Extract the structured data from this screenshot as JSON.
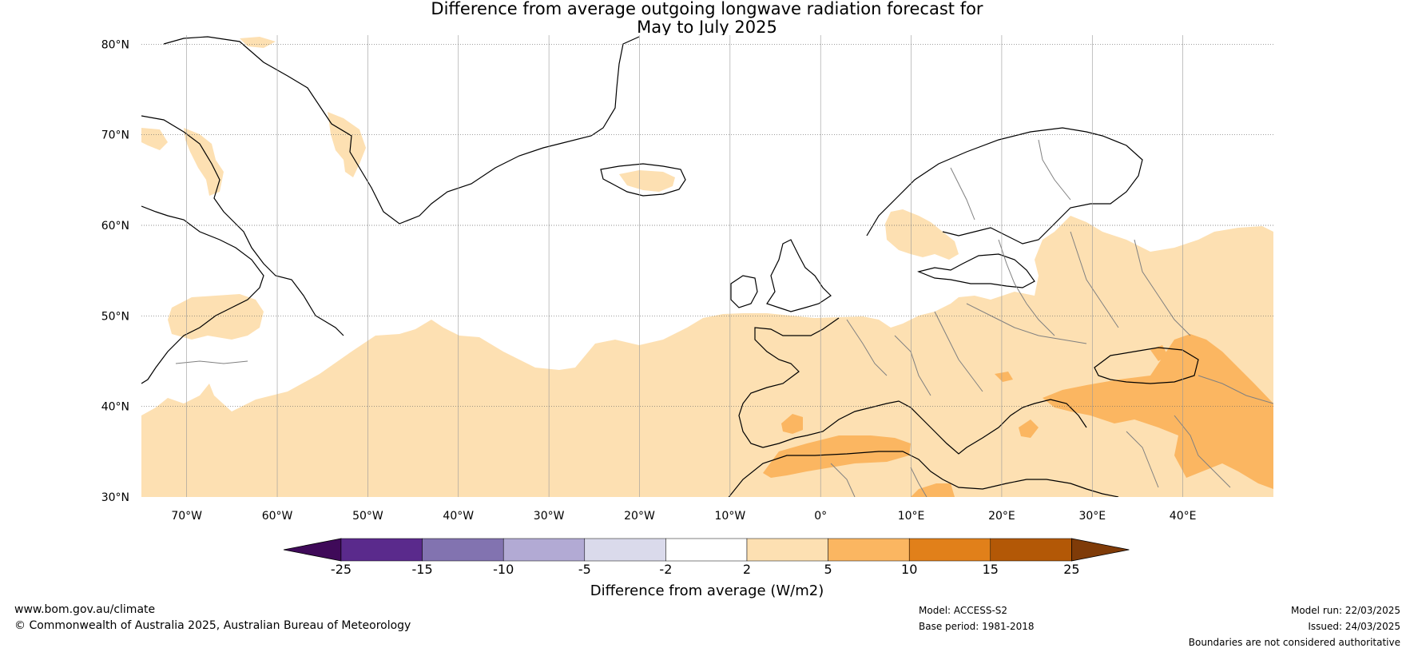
{
  "title": {
    "line1": "Difference from average outgoing longwave radiation forecast for",
    "line2": "May to July 2025"
  },
  "map": {
    "projection": "equirectangular",
    "lon_range": [
      -75,
      50
    ],
    "lat_range": [
      30,
      81
    ],
    "lat_labels": [
      "80°N",
      "70°N",
      "60°N",
      "50°N",
      "40°N",
      "30°N"
    ],
    "lon_labels": [
      "70°W",
      "60°W",
      "50°W",
      "40°W",
      "30°W",
      "20°W",
      "10°W",
      "0°",
      "10°E",
      "20°E",
      "30°E",
      "40°E"
    ],
    "gridlines": "dotted",
    "colors": {
      "light_orange": "#fde0b2",
      "mid_orange": "#fbb661",
      "coastline": "#000000",
      "borders": "#808080"
    }
  },
  "colorbar": {
    "ticks": [
      "-25",
      "-15",
      "-10",
      "-5",
      "-2",
      "2",
      "5",
      "10",
      "15",
      "25"
    ],
    "colors": [
      "#3f0a59",
      "#5a2a8c",
      "#8273b0",
      "#b2aad4",
      "#dadaeb",
      "#ffffff",
      "#fde0b2",
      "#fbb661",
      "#e1801a",
      "#b35806",
      "#7f3b08"
    ],
    "label": "Difference from average (W/m2)"
  },
  "footer": {
    "website": "www.bom.gov.au/climate",
    "copyright": "© Commonwealth of Australia 2025, Australian Bureau of Meteorology",
    "model": "Model: ACCESS-S2",
    "base_period": "Base period: 1981-2018",
    "model_run": "Model run: 22/03/2025",
    "issued": "Issued: 24/03/2025",
    "disclaimer": "Boundaries are not considered authoritative"
  }
}
